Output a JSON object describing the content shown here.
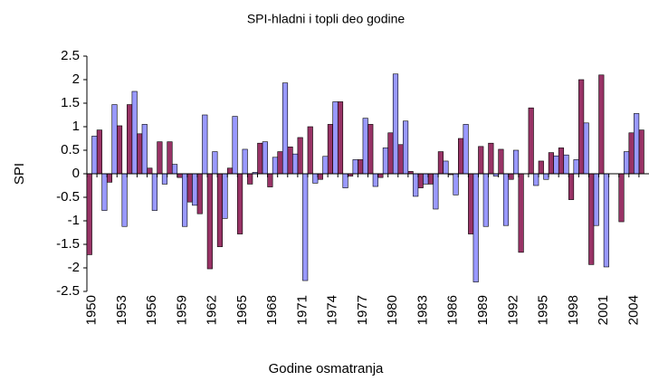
{
  "chart_data": {
    "type": "bar",
    "title": "SPI-hladni i topli deo godine",
    "x_label": "Godine osmatranja",
    "y_label": "SPI",
    "categories": [
      "1950",
      null,
      null,
      "1953",
      null,
      null,
      "1956",
      null,
      null,
      "1959",
      null,
      null,
      "1962",
      null,
      null,
      "1965",
      null,
      null,
      "1968",
      null,
      null,
      "1971",
      null,
      null,
      "1974",
      null,
      null,
      "1977",
      null,
      null,
      "1980",
      null,
      null,
      "1983",
      null,
      null,
      "1986",
      null,
      null,
      "1989",
      null,
      null,
      "1992",
      null,
      null,
      "1995",
      null,
      null,
      "1998",
      null,
      null,
      "2001",
      null,
      null,
      "2004",
      null
    ],
    "series": [
      {
        "color": "#993366",
        "values": [
          -1.72,
          0.93,
          -0.18,
          1.02,
          1.47,
          0.85,
          0.12,
          0.68,
          0.68,
          -0.08,
          -0.6,
          -0.85,
          -2.02,
          -1.55,
          0.12,
          -1.28,
          -0.22,
          0.65,
          -0.28,
          0.47,
          0.57,
          0.77,
          1.0,
          -0.12,
          1.05,
          1.53,
          -0.05,
          0.3,
          1.05,
          -0.08,
          0.87,
          0.62,
          0.05,
          -0.3,
          -0.22,
          0.47,
          -0.02,
          0.75,
          -1.28,
          0.58,
          0.65,
          0.52,
          -0.12,
          -1.67,
          1.4,
          0.27,
          0.45,
          0.55,
          -0.55,
          2.0,
          -1.93,
          2.1,
          null,
          -1.02,
          0.87,
          0.93
        ]
      },
      {
        "color": "#9999ff",
        "values": [
          0.8,
          -0.78,
          1.47,
          -1.12,
          1.75,
          1.05,
          -0.78,
          -0.22,
          0.2,
          -1.12,
          -0.67,
          1.25,
          0.47,
          -0.95,
          1.22,
          0.52,
          0.03,
          0.68,
          0.35,
          1.93,
          0.42,
          -2.27,
          -0.2,
          0.37,
          1.53,
          -0.3,
          0.3,
          1.18,
          -0.27,
          0.55,
          2.12,
          1.12,
          -0.48,
          -0.22,
          -0.75,
          0.27,
          -0.45,
          1.05,
          -2.3,
          -1.12,
          -0.05,
          -1.1,
          0.5,
          null,
          -0.25,
          -0.12,
          0.38,
          0.4,
          0.3,
          1.08,
          -1.1,
          -1.98,
          null,
          0.47,
          1.28,
          null
        ]
      }
    ],
    "ylim": [
      -2.5,
      2.5
    ],
    "yticks": [
      -2.5,
      -2,
      -1.5,
      -1,
      -0.5,
      0,
      0.5,
      1,
      1.5,
      2,
      2.5
    ],
    "grid": false
  }
}
